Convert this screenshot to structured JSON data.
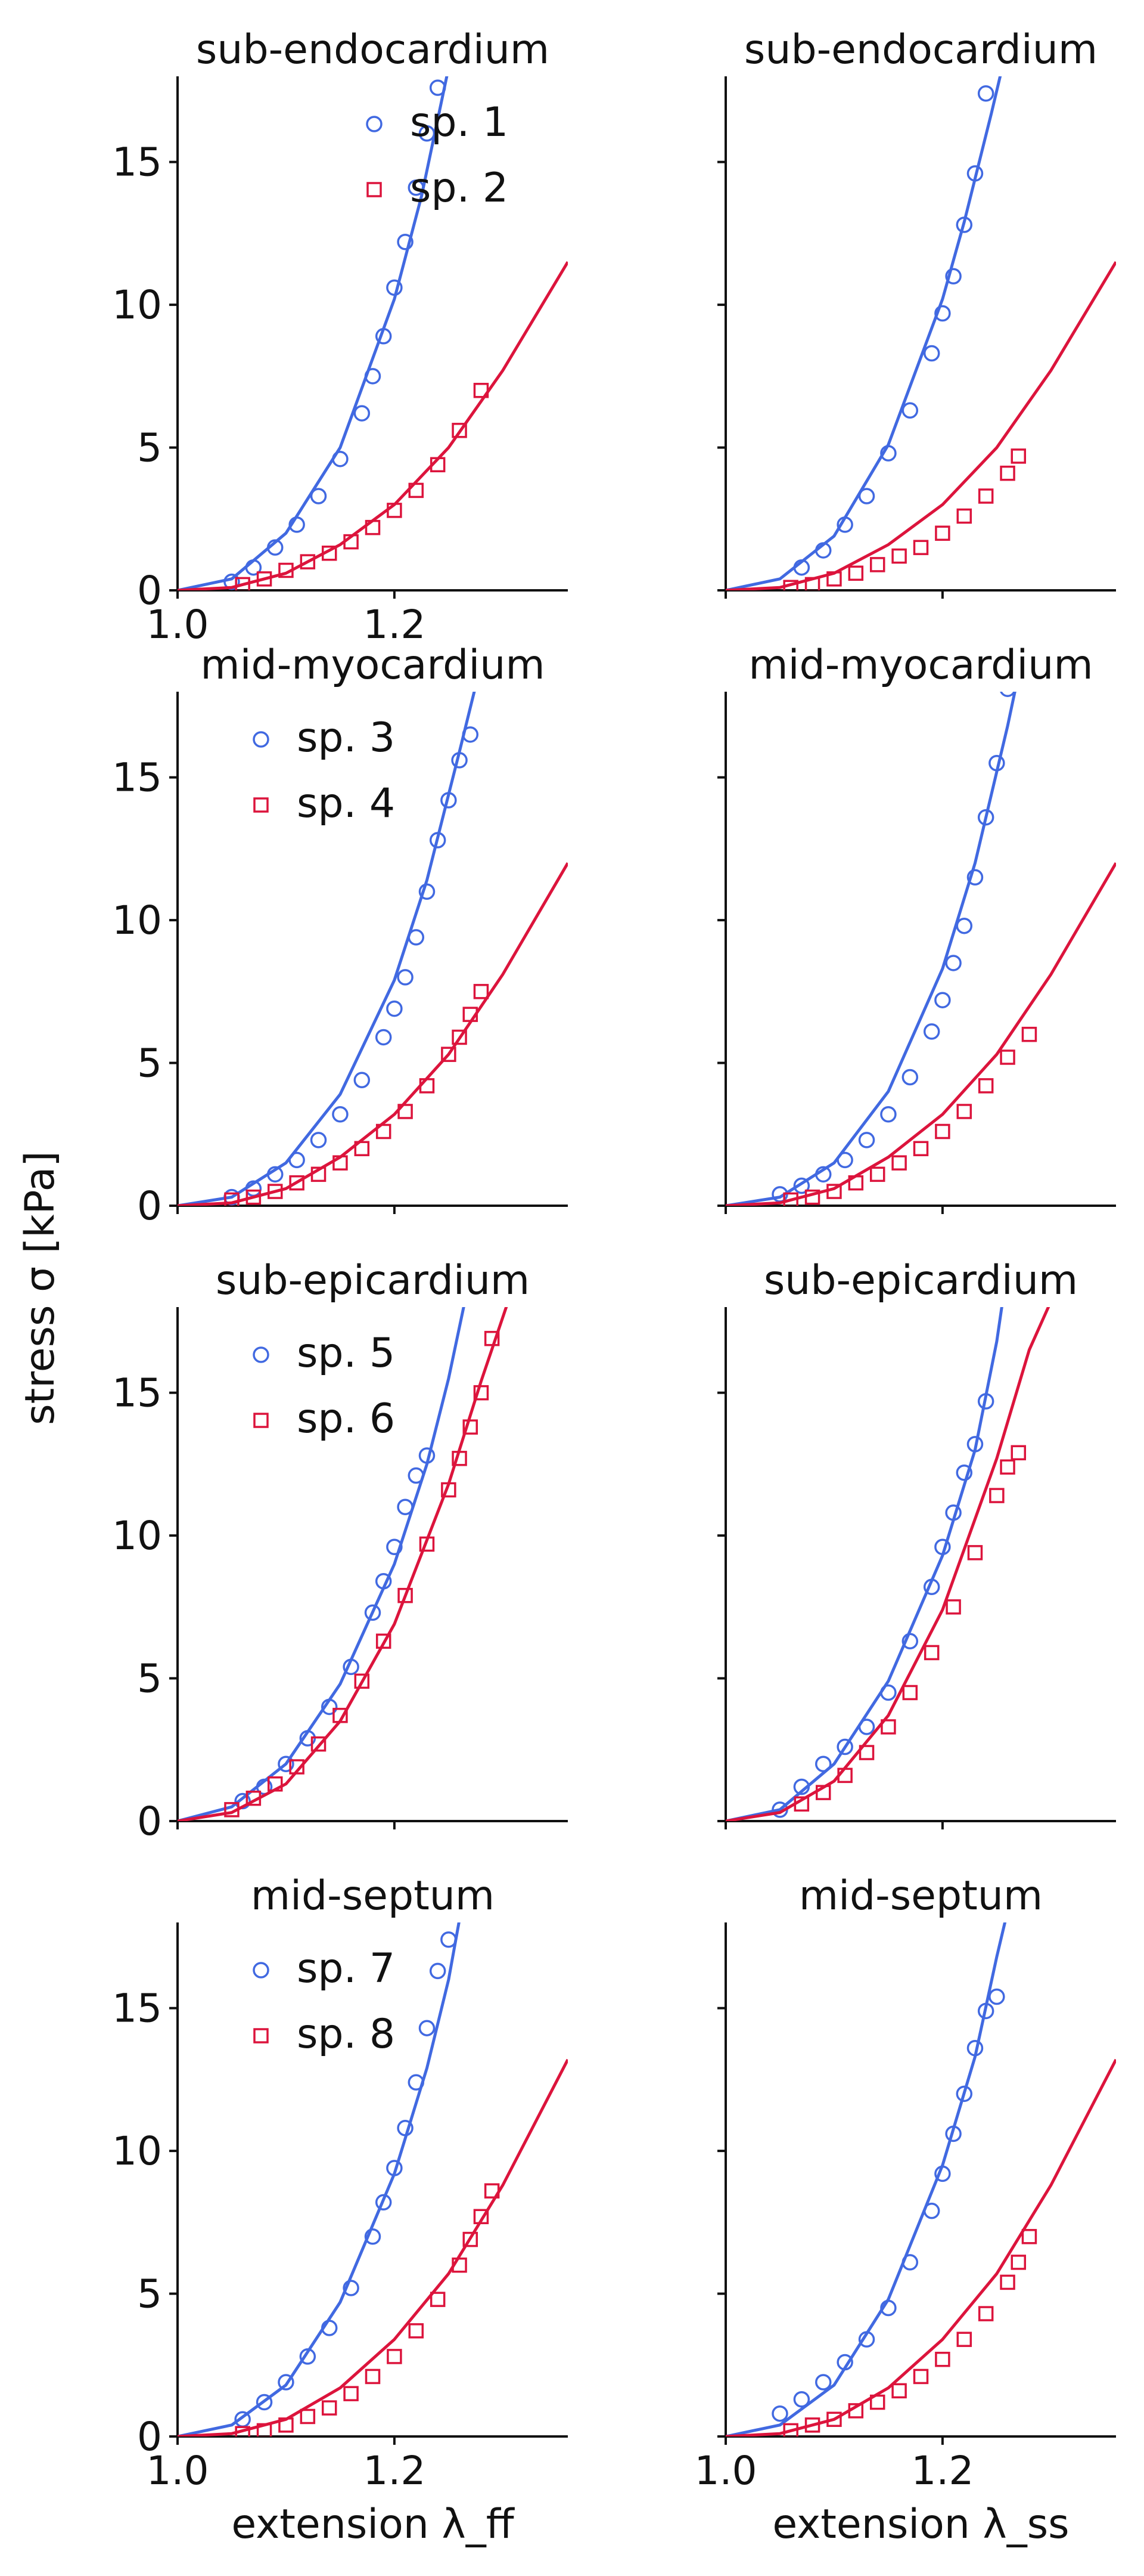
{
  "figure": {
    "ylabel": "stress σ [kPa]",
    "xlabels": [
      "extension λ_ff",
      "extension λ_ss"
    ],
    "colors": {
      "blue": "#4169E1",
      "red": "#DC143C"
    }
  },
  "chart_data": [
    {
      "type": "scatter",
      "title": "sub-endocardium",
      "xlim": [
        1.0,
        1.36
      ],
      "ylim": [
        0,
        18
      ],
      "xticks": [
        "1.0",
        "1.2"
      ],
      "yticks": [
        "0",
        "5",
        "10",
        "15"
      ],
      "legend": "upper-center",
      "series": [
        {
          "name": "sp. 1",
          "marker": "circle",
          "color": "#4169E1",
          "x": [
            1.05,
            1.07,
            1.09,
            1.11,
            1.13,
            1.15,
            1.17,
            1.18,
            1.19,
            1.2,
            1.21,
            1.22,
            1.23,
            1.24
          ],
          "y": [
            0.3,
            0.8,
            1.5,
            2.3,
            3.3,
            4.6,
            6.2,
            7.5,
            8.9,
            10.6,
            12.2,
            14.1,
            16.0,
            17.6
          ],
          "fit_x": [
            1.0,
            1.05,
            1.1,
            1.15,
            1.2,
            1.225,
            1.25
          ],
          "fit_y": [
            0,
            0.4,
            2.0,
            5.0,
            10.2,
            13.8,
            18.3
          ]
        },
        {
          "name": "sp. 2",
          "marker": "square",
          "color": "#DC143C",
          "x": [
            1.06,
            1.08,
            1.1,
            1.12,
            1.14,
            1.16,
            1.18,
            1.2,
            1.22,
            1.24,
            1.26,
            1.28
          ],
          "y": [
            0.2,
            0.4,
            0.7,
            1.0,
            1.3,
            1.7,
            2.2,
            2.8,
            3.5,
            4.4,
            5.6,
            7.0
          ],
          "fit_x": [
            1.0,
            1.05,
            1.1,
            1.15,
            1.2,
            1.25,
            1.3,
            1.36
          ],
          "fit_y": [
            0,
            0.1,
            0.6,
            1.6,
            3.0,
            5.0,
            7.7,
            11.5
          ]
        }
      ]
    },
    {
      "type": "scatter",
      "title": "sub-endocardium",
      "xlim": [
        1.0,
        1.36
      ],
      "ylim": [
        0,
        18
      ],
      "xticks": [
        "",
        ""
      ],
      "yticks": [
        "",
        "",
        "",
        ""
      ],
      "series": [
        {
          "marker": "circle",
          "color": "#4169E1",
          "x": [
            1.07,
            1.09,
            1.11,
            1.13,
            1.15,
            1.17,
            1.19,
            1.2,
            1.21,
            1.22,
            1.23,
            1.24
          ],
          "y": [
            0.8,
            1.4,
            2.3,
            3.3,
            4.8,
            6.3,
            8.3,
            9.7,
            11.0,
            12.8,
            14.6,
            17.4
          ],
          "fit_x": [
            1.0,
            1.05,
            1.1,
            1.15,
            1.2,
            1.22,
            1.245,
            1.255
          ],
          "fit_y": [
            0,
            0.4,
            1.9,
            5.1,
            10.2,
            12.9,
            16.7,
            18.3
          ]
        },
        {
          "marker": "square",
          "color": "#DC143C",
          "x": [
            1.06,
            1.08,
            1.1,
            1.12,
            1.14,
            1.16,
            1.18,
            1.2,
            1.22,
            1.24,
            1.26,
            1.27
          ],
          "y": [
            0.1,
            0.2,
            0.4,
            0.6,
            0.9,
            1.2,
            1.5,
            2.0,
            2.6,
            3.3,
            4.1,
            4.7
          ],
          "fit_x": [
            1.0,
            1.05,
            1.1,
            1.15,
            1.2,
            1.25,
            1.3,
            1.36
          ],
          "fit_y": [
            0,
            0.1,
            0.6,
            1.6,
            3.0,
            5.0,
            7.7,
            11.5
          ]
        }
      ]
    },
    {
      "type": "scatter",
      "title": "mid-myocardium",
      "xlim": [
        1.0,
        1.36
      ],
      "ylim": [
        0,
        18
      ],
      "xticks": [
        "",
        ""
      ],
      "yticks": [
        "0",
        "5",
        "10",
        "15"
      ],
      "legend": "upper-left",
      "series": [
        {
          "name": "sp. 3",
          "marker": "circle",
          "color": "#4169E1",
          "x": [
            1.05,
            1.07,
            1.09,
            1.11,
            1.13,
            1.15,
            1.17,
            1.19,
            1.2,
            1.21,
            1.22,
            1.23,
            1.24,
            1.25,
            1.26,
            1.27
          ],
          "y": [
            0.3,
            0.6,
            1.1,
            1.6,
            2.3,
            3.2,
            4.4,
            5.9,
            6.9,
            8.0,
            9.4,
            11.0,
            12.8,
            14.2,
            15.6,
            16.5
          ],
          "fit_x": [
            1.0,
            1.05,
            1.1,
            1.15,
            1.2,
            1.23,
            1.26,
            1.275
          ],
          "fit_y": [
            0,
            0.3,
            1.5,
            3.9,
            7.9,
            11.4,
            15.9,
            18.2
          ]
        },
        {
          "name": "sp. 4",
          "marker": "square",
          "color": "#DC143C",
          "x": [
            1.05,
            1.07,
            1.09,
            1.11,
            1.13,
            1.15,
            1.17,
            1.19,
            1.21,
            1.23,
            1.25,
            1.26,
            1.27,
            1.28
          ],
          "y": [
            0.2,
            0.3,
            0.5,
            0.8,
            1.1,
            1.5,
            2.0,
            2.6,
            3.3,
            4.2,
            5.3,
            5.9,
            6.7,
            7.5
          ],
          "fit_x": [
            1.0,
            1.05,
            1.1,
            1.15,
            1.2,
            1.25,
            1.3,
            1.36
          ],
          "fit_y": [
            0,
            0.1,
            0.6,
            1.7,
            3.2,
            5.3,
            8.1,
            12.0
          ]
        }
      ]
    },
    {
      "type": "scatter",
      "title": "mid-myocardium",
      "xlim": [
        1.0,
        1.36
      ],
      "ylim": [
        0,
        18
      ],
      "xticks": [
        "",
        ""
      ],
      "yticks": [
        "",
        "",
        "",
        ""
      ],
      "series": [
        {
          "marker": "circle",
          "color": "#4169E1",
          "x": [
            1.05,
            1.07,
            1.09,
            1.11,
            1.13,
            1.15,
            1.17,
            1.19,
            1.2,
            1.21,
            1.22,
            1.23,
            1.24,
            1.25,
            1.26
          ],
          "y": [
            0.4,
            0.7,
            1.1,
            1.6,
            2.3,
            3.2,
            4.5,
            6.1,
            7.2,
            8.5,
            9.8,
            11.5,
            13.6,
            15.5,
            18.1
          ],
          "fit_x": [
            1.0,
            1.05,
            1.1,
            1.15,
            1.2,
            1.23,
            1.26,
            1.27
          ],
          "fit_y": [
            0,
            0.3,
            1.5,
            4.0,
            8.3,
            12.0,
            16.8,
            18.6
          ]
        },
        {
          "marker": "square",
          "color": "#DC143C",
          "x": [
            1.06,
            1.08,
            1.1,
            1.12,
            1.14,
            1.16,
            1.18,
            1.2,
            1.22,
            1.24,
            1.26,
            1.28
          ],
          "y": [
            0.2,
            0.3,
            0.5,
            0.8,
            1.1,
            1.5,
            2.0,
            2.6,
            3.3,
            4.2,
            5.2,
            6.0
          ],
          "fit_x": [
            1.0,
            1.05,
            1.1,
            1.15,
            1.2,
            1.25,
            1.3,
            1.36
          ],
          "fit_y": [
            0,
            0.1,
            0.6,
            1.7,
            3.2,
            5.3,
            8.1,
            12.0
          ]
        }
      ]
    },
    {
      "type": "scatter",
      "title": "sub-epicardium",
      "xlim": [
        1.0,
        1.36
      ],
      "ylim": [
        0,
        18
      ],
      "xticks": [
        "",
        ""
      ],
      "yticks": [
        "0",
        "5",
        "10",
        "15"
      ],
      "legend": "upper-left",
      "series": [
        {
          "name": "sp. 5",
          "marker": "circle",
          "color": "#4169E1",
          "x": [
            1.06,
            1.08,
            1.1,
            1.12,
            1.14,
            1.16,
            1.18,
            1.19,
            1.2,
            1.21,
            1.22,
            1.23
          ],
          "y": [
            0.7,
            1.2,
            2.0,
            2.9,
            4.0,
            5.4,
            7.3,
            8.4,
            9.6,
            11.0,
            12.1,
            12.8
          ],
          "fit_x": [
            1.0,
            1.05,
            1.1,
            1.15,
            1.2,
            1.23,
            1.25,
            1.265
          ],
          "fit_y": [
            0,
            0.5,
            2.0,
            4.8,
            9.0,
            12.5,
            15.5,
            18.2
          ]
        },
        {
          "name": "sp. 6",
          "marker": "square",
          "color": "#DC143C",
          "x": [
            1.05,
            1.07,
            1.09,
            1.11,
            1.13,
            1.15,
            1.17,
            1.19,
            1.21,
            1.23,
            1.25,
            1.26,
            1.27,
            1.28,
            1.29
          ],
          "y": [
            0.4,
            0.8,
            1.3,
            1.9,
            2.7,
            3.7,
            4.9,
            6.3,
            7.9,
            9.7,
            11.6,
            12.7,
            13.8,
            15.0,
            16.9
          ],
          "fit_x": [
            1.0,
            1.05,
            1.1,
            1.15,
            1.2,
            1.25,
            1.28,
            1.305
          ],
          "fit_y": [
            0,
            0.3,
            1.3,
            3.5,
            6.9,
            11.8,
            15.4,
            18.2
          ]
        }
      ]
    },
    {
      "type": "scatter",
      "title": "sub-epicardium",
      "xlim": [
        1.0,
        1.36
      ],
      "ylim": [
        0,
        18
      ],
      "xticks": [
        "",
        ""
      ],
      "yticks": [
        "",
        "",
        "",
        ""
      ],
      "series": [
        {
          "marker": "circle",
          "color": "#4169E1",
          "x": [
            1.05,
            1.07,
            1.09,
            1.11,
            1.13,
            1.15,
            1.17,
            1.19,
            1.2,
            1.21,
            1.22,
            1.23,
            1.24
          ],
          "y": [
            0.4,
            1.2,
            2.0,
            2.6,
            3.3,
            4.5,
            6.3,
            8.2,
            9.6,
            10.8,
            12.2,
            13.2,
            14.7
          ],
          "fit_x": [
            1.0,
            1.05,
            1.1,
            1.15,
            1.2,
            1.23,
            1.25,
            1.255
          ],
          "fit_y": [
            0,
            0.4,
            2.0,
            4.9,
            9.3,
            13.0,
            16.8,
            18.1
          ]
        },
        {
          "marker": "square",
          "color": "#DC143C",
          "x": [
            1.07,
            1.09,
            1.11,
            1.13,
            1.15,
            1.17,
            1.19,
            1.21,
            1.23,
            1.25,
            1.26,
            1.27
          ],
          "y": [
            0.6,
            1.0,
            1.6,
            2.4,
            3.3,
            4.5,
            5.9,
            7.5,
            9.4,
            11.4,
            12.4,
            12.9
          ],
          "fit_x": [
            1.0,
            1.05,
            1.1,
            1.15,
            1.2,
            1.25,
            1.28,
            1.3
          ],
          "fit_y": [
            0,
            0.3,
            1.4,
            3.7,
            7.4,
            12.7,
            16.5,
            18.2
          ]
        }
      ]
    },
    {
      "type": "scatter",
      "title": "mid-septum",
      "xlim": [
        1.0,
        1.36
      ],
      "ylim": [
        0,
        18
      ],
      "xticks": [
        "1.0",
        "1.2"
      ],
      "yticks": [
        "0",
        "5",
        "10",
        "15"
      ],
      "legend": "upper-left",
      "series": [
        {
          "name": "sp. 7",
          "marker": "circle",
          "color": "#4169E1",
          "x": [
            1.06,
            1.08,
            1.1,
            1.12,
            1.14,
            1.16,
            1.18,
            1.19,
            1.2,
            1.21,
            1.22,
            1.23,
            1.24,
            1.25
          ],
          "y": [
            0.6,
            1.2,
            1.9,
            2.8,
            3.8,
            5.2,
            7.0,
            8.2,
            9.4,
            10.8,
            12.4,
            14.3,
            16.3,
            17.4
          ],
          "fit_x": [
            1.0,
            1.05,
            1.1,
            1.15,
            1.2,
            1.23,
            1.25,
            1.26
          ],
          "fit_y": [
            0,
            0.4,
            1.8,
            4.7,
            9.2,
            12.9,
            16.0,
            18.1
          ]
        },
        {
          "name": "sp. 8",
          "marker": "square",
          "color": "#DC143C",
          "x": [
            1.06,
            1.08,
            1.1,
            1.12,
            1.14,
            1.16,
            1.18,
            1.2,
            1.22,
            1.24,
            1.26,
            1.27,
            1.28,
            1.29
          ],
          "y": [
            0.1,
            0.2,
            0.4,
            0.7,
            1.0,
            1.5,
            2.1,
            2.8,
            3.7,
            4.8,
            6.0,
            6.9,
            7.7,
            8.6
          ],
          "fit_x": [
            1.0,
            1.05,
            1.1,
            1.15,
            1.2,
            1.25,
            1.3,
            1.36
          ],
          "fit_y": [
            0,
            0.1,
            0.6,
            1.7,
            3.4,
            5.7,
            8.8,
            13.2
          ]
        }
      ]
    },
    {
      "type": "scatter",
      "title": "mid-septum",
      "xlim": [
        1.0,
        1.36
      ],
      "ylim": [
        0,
        18
      ],
      "xticks": [
        "1.0",
        "1.2"
      ],
      "yticks": [
        "",
        "",
        "",
        ""
      ],
      "series": [
        {
          "marker": "circle",
          "color": "#4169E1",
          "x": [
            1.05,
            1.07,
            1.09,
            1.11,
            1.13,
            1.15,
            1.17,
            1.19,
            1.2,
            1.21,
            1.22,
            1.23,
            1.24,
            1.25
          ],
          "y": [
            0.8,
            1.3,
            1.9,
            2.6,
            3.4,
            4.5,
            6.1,
            7.9,
            9.2,
            10.6,
            12.0,
            13.6,
            14.9,
            15.4
          ],
          "fit_x": [
            1.0,
            1.05,
            1.1,
            1.15,
            1.2,
            1.23,
            1.25,
            1.26
          ],
          "fit_y": [
            0,
            0.4,
            1.8,
            4.8,
            9.5,
            13.3,
            16.8,
            18.4
          ]
        },
        {
          "marker": "square",
          "color": "#DC143C",
          "x": [
            1.06,
            1.08,
            1.1,
            1.12,
            1.14,
            1.16,
            1.18,
            1.2,
            1.22,
            1.24,
            1.26,
            1.27,
            1.28
          ],
          "y": [
            0.2,
            0.4,
            0.6,
            0.9,
            1.2,
            1.6,
            2.1,
            2.7,
            3.4,
            4.3,
            5.4,
            6.1,
            7.0
          ],
          "fit_x": [
            1.0,
            1.05,
            1.1,
            1.15,
            1.2,
            1.25,
            1.3,
            1.36
          ],
          "fit_y": [
            0,
            0.1,
            0.6,
            1.7,
            3.4,
            5.7,
            8.8,
            13.2
          ]
        }
      ]
    }
  ]
}
